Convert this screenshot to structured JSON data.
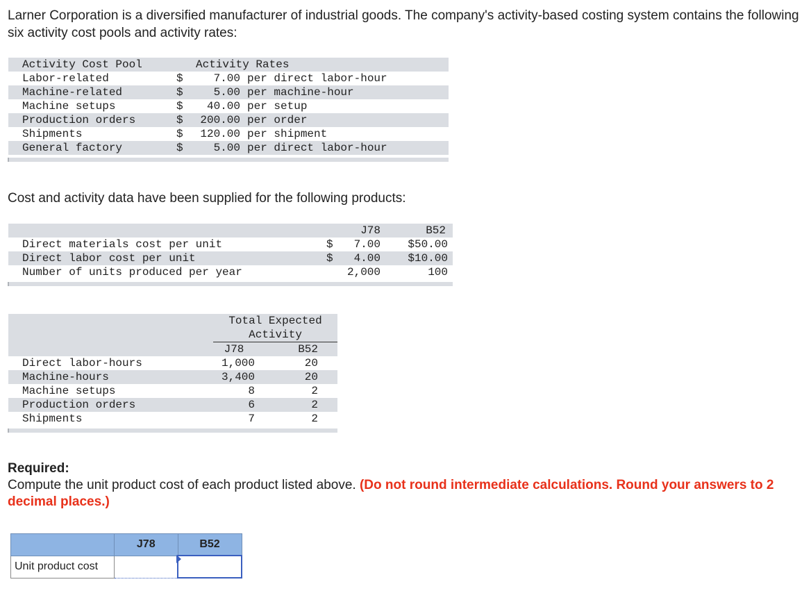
{
  "intro": "Larner Corporation is a diversified manufacturer of industrial goods. The company's activity-based costing system contains the following six activity cost pools and activity rates:",
  "activity_table": {
    "header_pool": "Activity Cost Pool",
    "header_rates": "Activity Rates",
    "rows": [
      {
        "pool": "Labor-related",
        "currency": "$",
        "amount": "7.00",
        "basis": "per direct labor-hour"
      },
      {
        "pool": "Machine-related",
        "currency": "$",
        "amount": "5.00",
        "basis": "per machine-hour"
      },
      {
        "pool": "Machine setups",
        "currency": "$",
        "amount": "40.00",
        "basis": "per setup"
      },
      {
        "pool": "Production orders",
        "currency": "$",
        "amount": "200.00",
        "basis": "per order"
      },
      {
        "pool": "Shipments",
        "currency": "$",
        "amount": "120.00",
        "basis": "per shipment"
      },
      {
        "pool": "General factory",
        "currency": "$",
        "amount": "5.00",
        "basis": "per direct labor-hour"
      }
    ]
  },
  "para2": "Cost and activity data have been supplied for the following products:",
  "product_table": {
    "col1": "J78",
    "col2": "B52",
    "rows": [
      {
        "label": "Direct materials cost per unit",
        "cur1": "$",
        "v1": "7.00",
        "v2": "$50.00"
      },
      {
        "label": "Direct labor cost per unit",
        "cur1": "$",
        "v1": "4.00",
        "v2": "$10.00"
      },
      {
        "label": "Number of units produced per year",
        "cur1": "",
        "v1": "2,000",
        "v2": "100"
      }
    ]
  },
  "activity_expected": {
    "header_line1": "Total Expected",
    "header_line2": "Activity",
    "col1": "J78",
    "col2": "B52",
    "rows": [
      {
        "label": "Direct labor-hours",
        "v1": "1,000",
        "v2": "20"
      },
      {
        "label": "Machine-hours",
        "v1": "3,400",
        "v2": "20"
      },
      {
        "label": "Machine setups",
        "v1": "8",
        "v2": "2"
      },
      {
        "label": "Production orders",
        "v1": "6",
        "v2": "2"
      },
      {
        "label": "Shipments",
        "v1": "7",
        "v2": "2"
      }
    ]
  },
  "required": {
    "title": "Required:",
    "text": "Compute the unit product cost of each product listed above.",
    "note": "(Do not round intermediate calculations. Round your answers to 2 decimal places.)"
  },
  "answer_table": {
    "col1": "J78",
    "col2": "B52",
    "row_label": "Unit product cost",
    "j78_value": "",
    "b52_value": ""
  }
}
